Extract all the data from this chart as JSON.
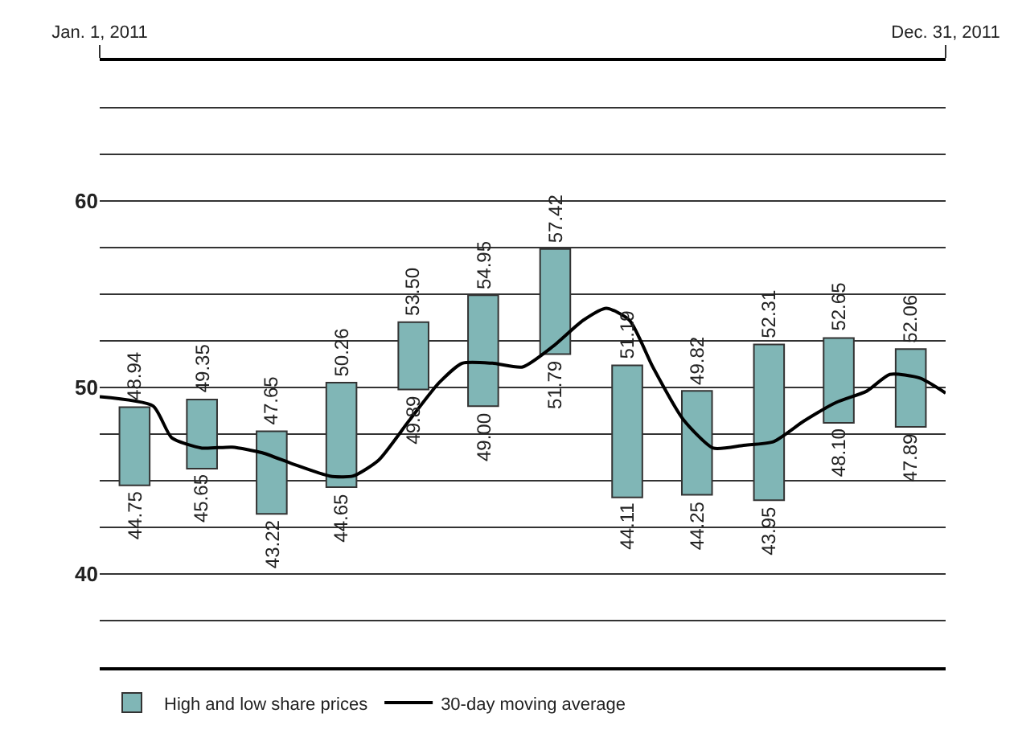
{
  "chart_data": {
    "type": "bar",
    "x": [
      "2011-01-16",
      "2011-02-14",
      "2011-03-16",
      "2011-04-15",
      "2011-05-16",
      "2011-06-15",
      "2011-07-16",
      "2011-08-16",
      "2011-09-15",
      "2011-10-16",
      "2011-11-15",
      "2011-12-16"
    ],
    "series": [
      {
        "name": "High and low share prices",
        "color": "#80b6b6",
        "base": [
          44.75,
          45.65,
          43.22,
          44.65,
          49.89,
          49.0,
          51.79,
          44.11,
          44.25,
          43.95,
          48.1,
          47.89
        ],
        "values": [
          4.19,
          3.7,
          4.43,
          5.61,
          3.61,
          5.95,
          5.63,
          7.08,
          5.57,
          8.36,
          4.55,
          4.17
        ]
      },
      {
        "name": "30-day moving average",
        "type": "line",
        "color": "#000000",
        "x": [
          "2011-01-01",
          "2011-01-24",
          "2011-02-01",
          "2011-02-14",
          "2011-02-27",
          "2011-03-12",
          "2011-03-25",
          "2011-04-10",
          "2011-04-20",
          "2011-05-01",
          "2011-05-14",
          "2011-05-27",
          "2011-06-06",
          "2011-06-19",
          "2011-07-02",
          "2011-07-15",
          "2011-07-28",
          "2011-08-07",
          "2011-08-17",
          "2011-08-27",
          "2011-09-09",
          "2011-09-22",
          "2011-10-05",
          "2011-10-18",
          "2011-10-31",
          "2011-11-14",
          "2011-11-27",
          "2011-12-07",
          "2011-12-20",
          "2011-12-31"
        ],
        "values": [
          49.5,
          49.0,
          47.3,
          46.75,
          46.8,
          46.5,
          45.9,
          45.25,
          45.25,
          46.1,
          48.2,
          50.25,
          51.3,
          51.3,
          51.1,
          52.2,
          53.6,
          54.25,
          53.6,
          51.1,
          48.3,
          46.75,
          46.9,
          47.1,
          48.2,
          49.2,
          49.8,
          50.7,
          50.5,
          49.7
        ]
      }
    ],
    "annotations": [
      {
        "text": "48.94",
        "x": "2011-01-16",
        "y": 48.94
      },
      {
        "text": "44.75",
        "x": "2011-01-16",
        "y": 44.75
      },
      {
        "text": "49.35",
        "x": "2011-02-14",
        "y": 49.35
      },
      {
        "text": "45.65",
        "x": "2011-02-14",
        "y": 45.65
      },
      {
        "text": "47.65",
        "x": "2011-03-16",
        "y": 47.65
      },
      {
        "text": "43.22",
        "x": "2011-03-16",
        "y": 43.22
      },
      {
        "text": "50.26",
        "x": "2011-04-15",
        "y": 50.26
      },
      {
        "text": "44.65",
        "x": "2011-04-15",
        "y": 44.65
      },
      {
        "text": "53.50",
        "x": "2011-05-16",
        "y": 53.5
      },
      {
        "text": "49.89",
        "x": "2011-05-16",
        "y": 49.89
      },
      {
        "text": "54.95",
        "x": "2011-06-15",
        "y": 54.95
      },
      {
        "text": "49.00",
        "x": "2011-06-15",
        "y": 49.0
      },
      {
        "text": "57.42",
        "x": "2011-07-16",
        "y": 57.42
      },
      {
        "text": "51.79",
        "x": "2011-07-16",
        "y": 51.79
      },
      {
        "text": "51.19",
        "x": "2011-08-16",
        "y": 51.19
      },
      {
        "text": "44.11",
        "x": "2011-08-16",
        "y": 44.11
      },
      {
        "text": "49.82",
        "x": "2011-09-15",
        "y": 49.82
      },
      {
        "text": "44.25",
        "x": "2011-09-15",
        "y": 44.25
      },
      {
        "text": "52.31",
        "x": "2011-10-16",
        "y": 52.31
      },
      {
        "text": "43.95",
        "x": "2011-10-16",
        "y": 43.95
      },
      {
        "text": "52.65",
        "x": "2011-11-15",
        "y": 52.65
      },
      {
        "text": "48.10",
        "x": "2011-11-15",
        "y": 48.1
      },
      {
        "text": "52.06",
        "x": "2011-12-16",
        "y": 52.06
      },
      {
        "text": "47.89",
        "x": "2011-12-16",
        "y": 47.89
      }
    ],
    "xlim": [
      "2011-01-01",
      "2011-12-31"
    ],
    "xticks": [
      {
        "value": "2011-01-01",
        "label": "Jan. 1, 2011"
      },
      {
        "value": "2011-12-31",
        "label": "Dec. 31, 2011"
      }
    ],
    "ylim": [
      35,
      67.5
    ],
    "yticks": [
      {
        "value": 35,
        "label": null
      },
      {
        "value": 37.5,
        "label": null
      },
      40,
      {
        "value": 42.5,
        "label": null
      },
      {
        "value": 45,
        "label": null
      },
      {
        "value": 47.5,
        "label": null
      },
      50,
      {
        "value": 52.5,
        "label": null
      },
      {
        "value": 55,
        "label": null
      },
      {
        "value": 57.5,
        "label": null
      },
      60,
      {
        "value": 62.5,
        "label": null
      },
      {
        "value": 65,
        "label": null
      }
    ],
    "grid": "y",
    "legend": "bottom",
    "marker": "none",
    "line_style": "solid"
  }
}
